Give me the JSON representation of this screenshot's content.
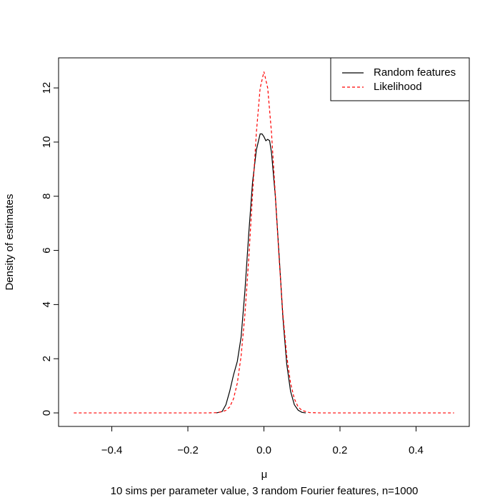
{
  "chart_data": {
    "type": "line",
    "x_label": "μ",
    "y_label": "Density of estimates",
    "subtitle": "10 sims per parameter value, 3 random Fourier features, n=1000",
    "xlim": [
      -0.54,
      0.54
    ],
    "ylim": [
      -0.5,
      13.11
    ],
    "xticks": [
      {
        "value": -0.4,
        "label": "−0.4"
      },
      {
        "value": -0.2,
        "label": "−0.2"
      },
      {
        "value": 0,
        "label": "0.0"
      },
      0.2,
      0.4
    ],
    "yticks": [
      0,
      2,
      4,
      6,
      8,
      10,
      12
    ],
    "legend": "top-right",
    "series": [
      {
        "name": "Random features",
        "color": "#000000",
        "dash": "solid",
        "x": [
          -0.125,
          -0.11,
          -0.1,
          -0.09,
          -0.08,
          -0.07,
          -0.06,
          -0.05,
          -0.04,
          -0.03,
          -0.02,
          -0.01,
          -0.005,
          0,
          0.005,
          0.01,
          0.015,
          0.02,
          0.03,
          0.04,
          0.05,
          0.06,
          0.07,
          0.08,
          0.09,
          0.1,
          0.11
        ],
        "values": [
          0,
          0.05,
          0.3,
          0.8,
          1.4,
          1.9,
          2.8,
          4.5,
          6.6,
          8.5,
          9.7,
          10.3,
          10.3,
          10.2,
          10.05,
          10.1,
          10.05,
          9.6,
          8.0,
          5.8,
          3.5,
          1.8,
          0.8,
          0.3,
          0.1,
          0.02,
          0
        ]
      },
      {
        "name": "Likelihood",
        "color": "#ff0000",
        "dash": "dashed",
        "x": [
          -0.5,
          -0.15,
          -0.12,
          -0.1,
          -0.09,
          -0.08,
          -0.07,
          -0.06,
          -0.05,
          -0.04,
          -0.03,
          -0.02,
          -0.01,
          0,
          0.01,
          0.02,
          0.03,
          0.04,
          0.05,
          0.06,
          0.07,
          0.08,
          0.09,
          0.1,
          0.12,
          0.15,
          0.5
        ],
        "values": [
          0,
          0,
          0.01,
          0.09,
          0.22,
          0.52,
          1.1,
          2.1,
          3.63,
          5.68,
          8.05,
          10.33,
          11.99,
          12.6,
          11.99,
          10.33,
          8.05,
          5.68,
          3.63,
          2.1,
          1.1,
          0.52,
          0.22,
          0.09,
          0.01,
          0,
          0
        ]
      }
    ]
  }
}
